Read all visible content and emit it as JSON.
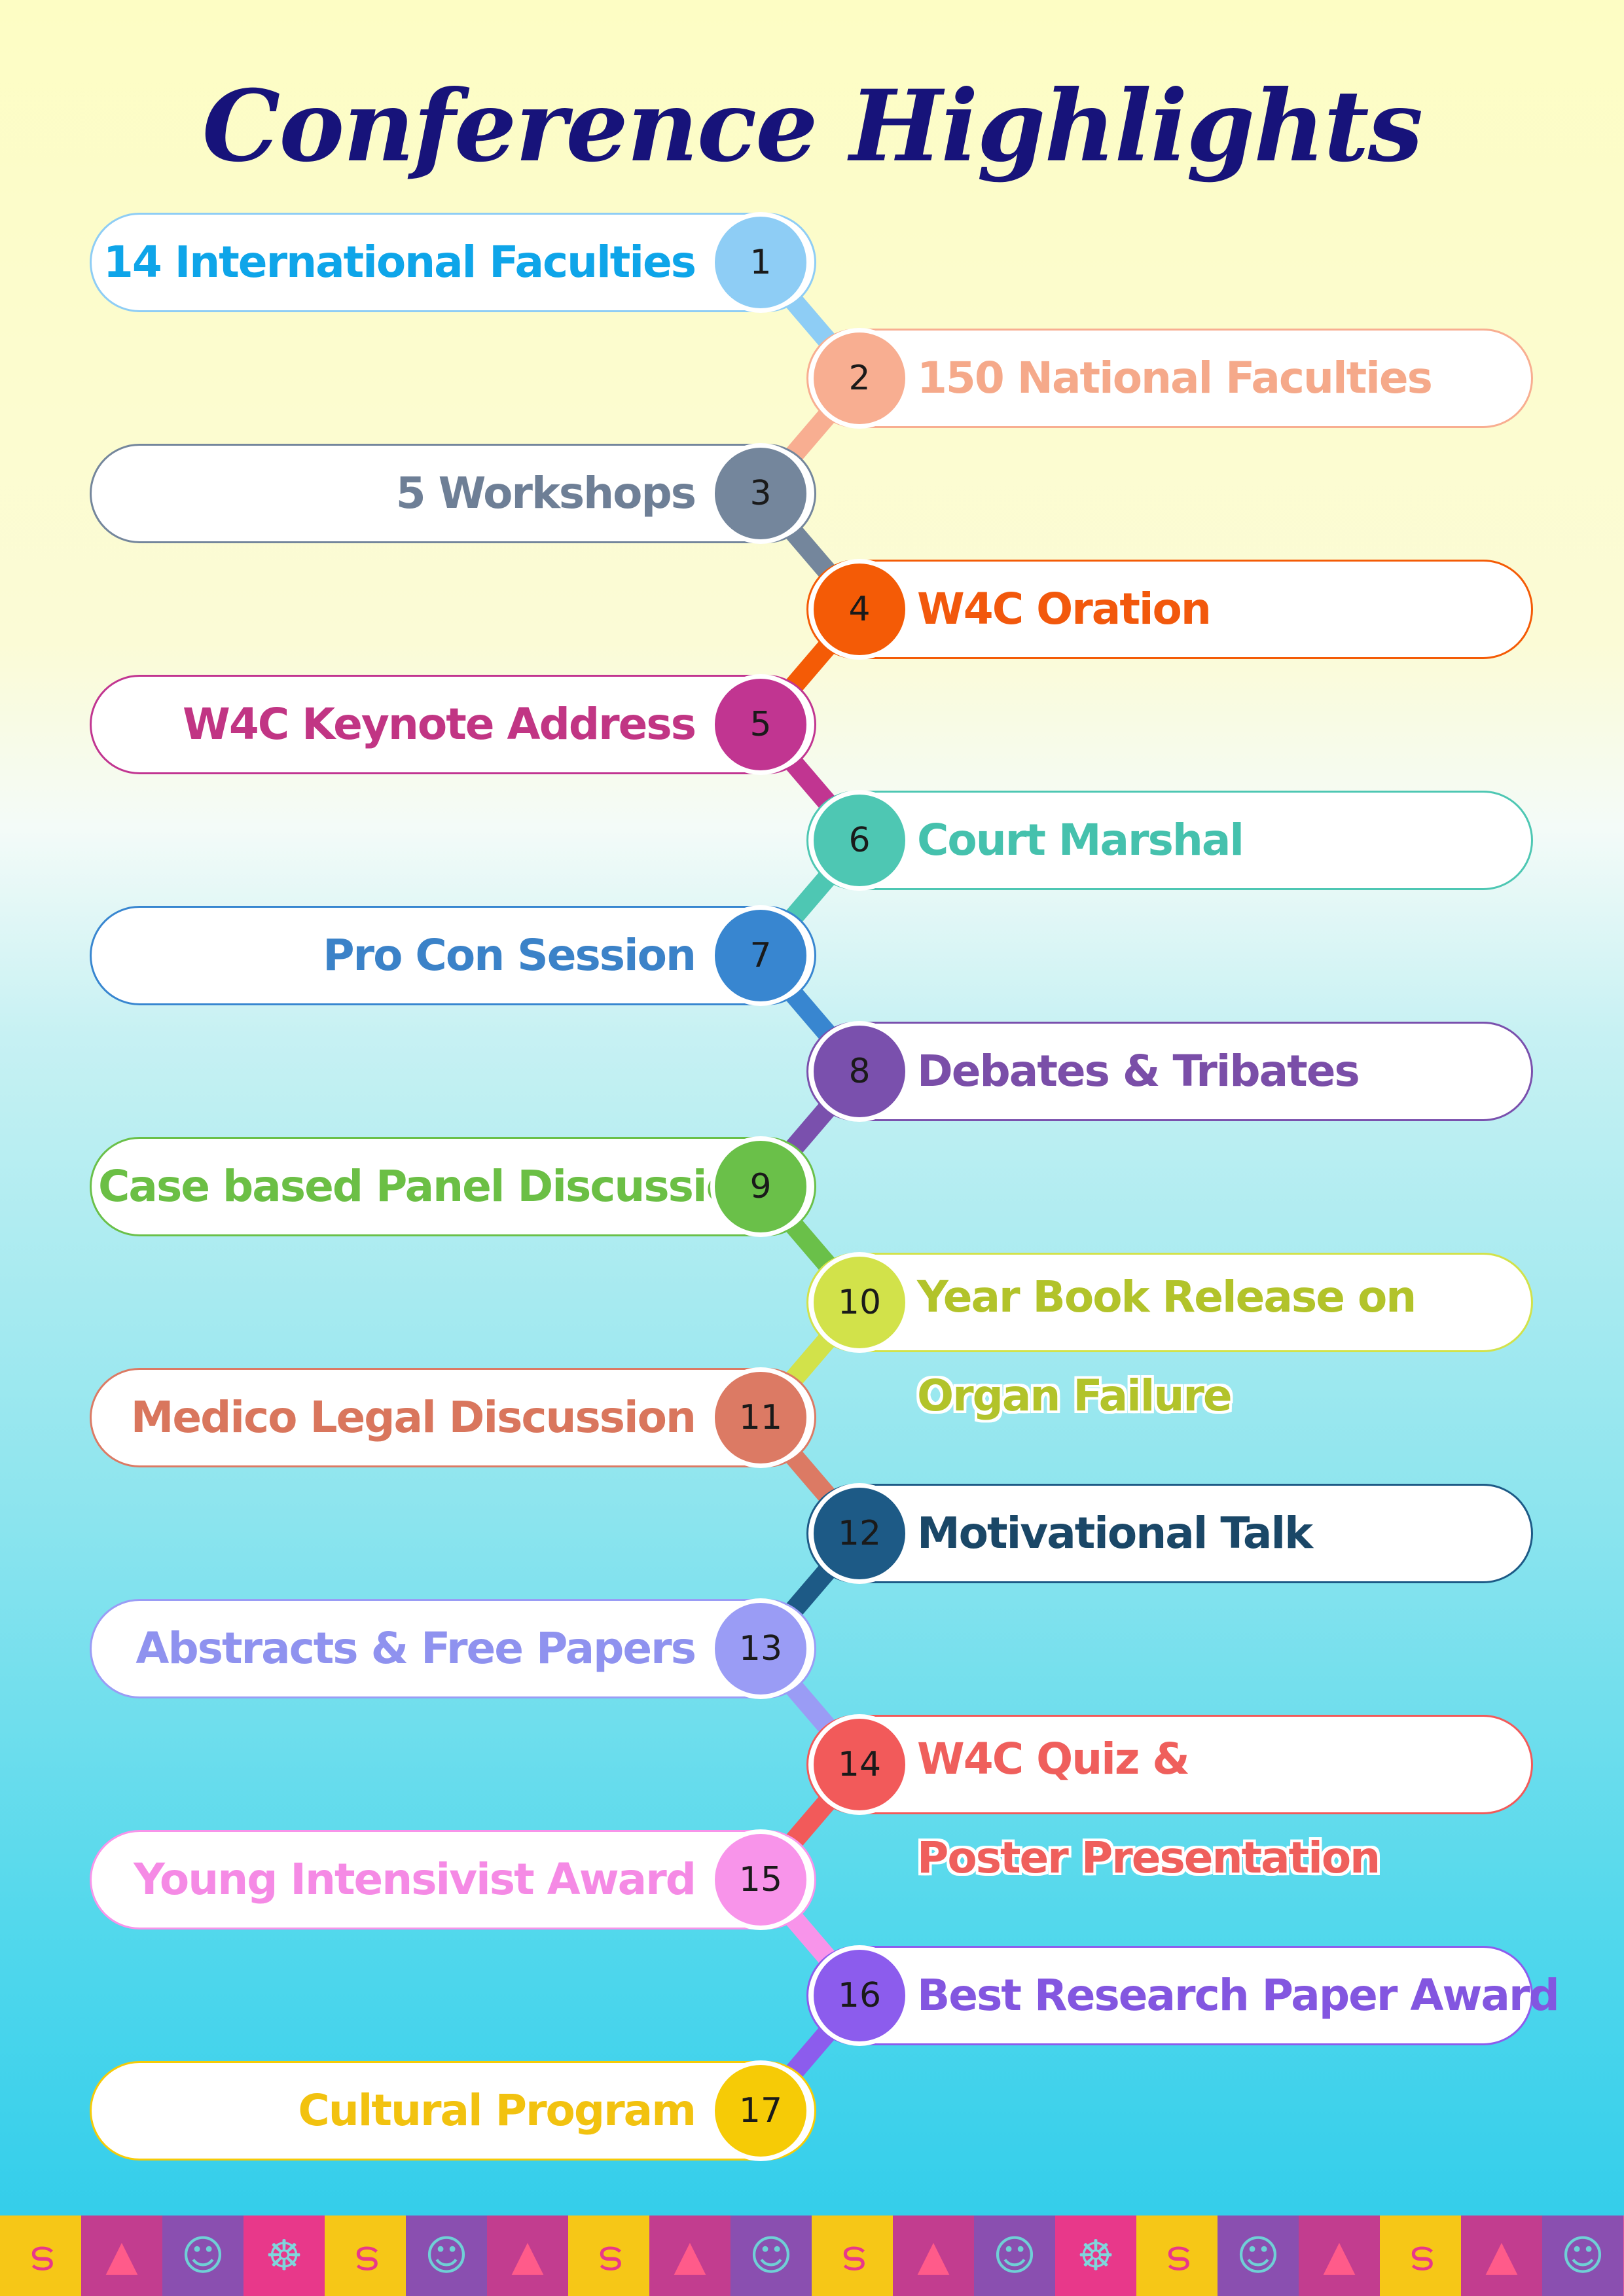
{
  "title": "Conference Highlights",
  "items": [
    {
      "num": "1",
      "label": "14 International Faculties",
      "label2": "",
      "side": "left",
      "color": "#0ea5e9",
      "circle": "#8ecdf5"
    },
    {
      "num": "2",
      "label": "150 National Faculties",
      "label2": "",
      "side": "right",
      "color": "#f5a98a",
      "circle": "#f8ae91"
    },
    {
      "num": "3",
      "label": "5 Workshops",
      "label2": "",
      "side": "left",
      "color": "#6e7f96",
      "circle": "#74869c"
    },
    {
      "num": "4",
      "label": "W4C Oration",
      "label2": "",
      "side": "right",
      "color": "#f2580c",
      "circle": "#f45b06"
    },
    {
      "num": "5",
      "label": "W4C Keynote Address",
      "label2": "",
      "side": "left",
      "color": "#c13584",
      "circle": "#c13591"
    },
    {
      "num": "6",
      "label": "Court Marshal",
      "label2": "",
      "side": "right",
      "color": "#45c1ad",
      "circle": "#4ec7b3"
    },
    {
      "num": "7",
      "label": "Pro Con Session",
      "label2": "",
      "side": "left",
      "color": "#3b82c8",
      "circle": "#3886d0"
    },
    {
      "num": "8",
      "label": "Debates & Tribates",
      "label2": "",
      "side": "right",
      "color": "#7a4ea8",
      "circle": "#7a50ad"
    },
    {
      "num": "9",
      "label": "Case based Panel Discussions",
      "label2": "",
      "side": "left",
      "color": "#6bbf45",
      "circle": "#6ac049"
    },
    {
      "num": "10",
      "label": "Year Book Release on",
      "label2": "Organ Failure",
      "side": "right",
      "color": "#b2c32a",
      "circle": "#d2e24a"
    },
    {
      "num": "11",
      "label": "Medico Legal Discussion",
      "label2": "",
      "side": "left",
      "color": "#d9765d",
      "circle": "#dc7a64"
    },
    {
      "num": "12",
      "label": "Motivational Talk",
      "label2": "",
      "side": "right",
      "color": "#1a4767",
      "circle": "#1d5a86"
    },
    {
      "num": "13",
      "label": "Abstracts & Free Papers",
      "label2": "",
      "side": "left",
      "color": "#8f92ef",
      "circle": "#9a9cf5"
    },
    {
      "num": "14",
      "label": "W4C Quiz &",
      "label2": "Poster Presentation",
      "side": "right",
      "color": "#ef5f5c",
      "circle": "#f25a5a"
    },
    {
      "num": "15",
      "label": "Young Intensivist Award",
      "label2": "",
      "side": "left",
      "color": "#f58ae5",
      "circle": "#f894ea"
    },
    {
      "num": "16",
      "label": "Best Research Paper Award",
      "label2": "",
      "side": "right",
      "color": "#8356e0",
      "circle": "#8c5ced"
    },
    {
      "num": "17",
      "label": "Cultural Program",
      "label2": "",
      "side": "left",
      "color": "#f2c20f",
      "circle": "#f6cb06"
    }
  ],
  "footer_tiles": [
    "spiral",
    "temple",
    "face",
    "wheel",
    "spiral",
    "face",
    "temple",
    "spiral",
    "temple",
    "face",
    "spiral",
    "temple",
    "face",
    "wheel",
    "spiral",
    "face",
    "temple",
    "spiral",
    "temple",
    "face"
  ]
}
